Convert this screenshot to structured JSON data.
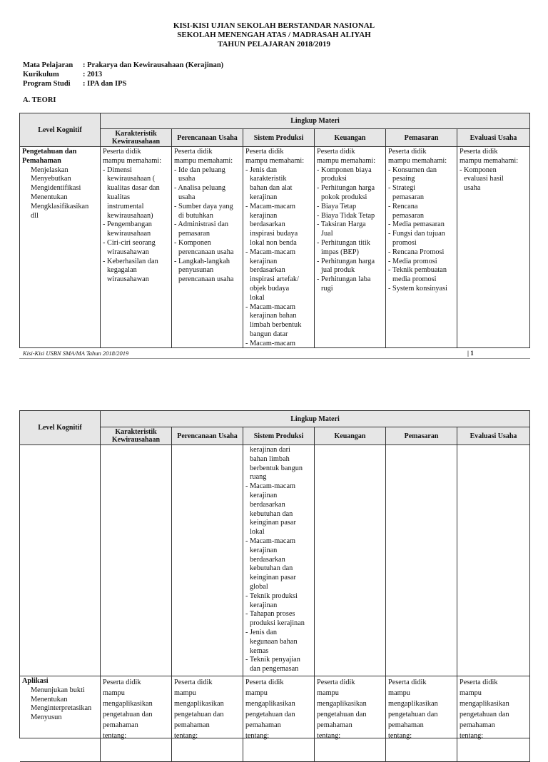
{
  "header": {
    "lines": [
      "KISI-KISI UJIAN SEKOLAH BERSTANDAR NASIONAL",
      "SEKOLAH MENENGAH ATAS / MADRASAH ALIYAH",
      "TAHUN PELAJARAN 2018/2019"
    ]
  },
  "meta": [
    {
      "label": "Mata Pelajaran",
      "value": ": Prakarya dan Kewirausahaan (Kerajinan)"
    },
    {
      "label": "Kurikulum",
      "value": ": 2013"
    },
    {
      "label": "Program Studi",
      "value": ": IPA dan IPS"
    }
  ],
  "section": "A. TEORI",
  "table": {
    "level_header": "Level Kognitif",
    "group_header": "Lingkup Materi",
    "columns": [
      "Karakteristik Kewirausahaan",
      "Perencanaan Usaha",
      "Sistem Produksi",
      "Keuangan",
      "Pemasaran",
      "Evaluasi Usaha"
    ]
  },
  "page1": {
    "level": {
      "title": [
        "Pengetahuan dan",
        "Pemahaman"
      ],
      "items": [
        "Menjelaskan",
        "Menyebutkan",
        "Mengidentifikasi",
        "Menentukan",
        "Mengklasifikasikan",
        "dll"
      ]
    },
    "cells": [
      {
        "intro": [
          "Peserta didik",
          "mampu memahami:"
        ],
        "items": [
          [
            "Dimensi",
            "kewirausahaan (",
            "kualitas dasar dan",
            "kualitas",
            "instrumental",
            "kewirausahaan)"
          ],
          [
            "Pengembangan",
            "kewirausahaan"
          ],
          [
            "Ciri-ciri seorang",
            "wirausahawan"
          ],
          [
            "Keberhasilan dan",
            "kegagalan",
            "wirausahawan"
          ]
        ]
      },
      {
        "intro": [
          "Peserta didik",
          "mampu  memahami:"
        ],
        "items": [
          [
            "Ide dan peluang",
            "usaha"
          ],
          [
            "Analisa peluang",
            "usaha"
          ],
          [
            "Sumber daya yang",
            "di butuhkan"
          ],
          [
            "Administrasi dan",
            "pemasaran"
          ],
          [
            "Komponen",
            "perencanaan usaha"
          ],
          [
            "Langkah-langkah",
            "penyusunan",
            "perencanaan usaha"
          ]
        ]
      },
      {
        "intro": [
          "Peserta didik",
          "mampu memahami:"
        ],
        "items": [
          [
            "Jenis dan",
            "karakteristik",
            "bahan dan alat",
            "kerajinan"
          ],
          [
            "Macam-macam",
            "kerajinan",
            "berdasarkan",
            "inspirasi budaya",
            "lokal non benda"
          ],
          [
            "Macam-macam",
            "kerajinan",
            "berdasarkan",
            "inspirasi artefak/",
            "objek budaya",
            "lokal"
          ],
          [
            "Macam-macam",
            "kerajinan bahan",
            "limbah berbentuk",
            "bangun datar"
          ],
          [
            "Macam-macam"
          ]
        ]
      },
      {
        "intro": [
          "Peserta didik",
          "mampu memahami:"
        ],
        "items": [
          [
            "Komponen biaya",
            "produksi"
          ],
          [
            "Perhitungan harga",
            "pokok produksi"
          ],
          [
            "Biaya Tetap"
          ],
          [
            "Biaya Tidak Tetap"
          ],
          [
            "Taksiran Harga",
            "Jual"
          ],
          [
            "Perhitungan titik",
            "impas (BEP)"
          ],
          [
            "Perhitungan harga",
            "jual produk"
          ],
          [
            "Perhitungan laba",
            "rugi"
          ]
        ]
      },
      {
        "intro": [
          "Peserta didik",
          "mampu memahami:"
        ],
        "items": [
          [
            "Konsumen dan",
            "pesaing"
          ],
          [
            "Strategi",
            "pemasaran"
          ],
          [
            "Rencana",
            "pemasaran"
          ],
          [
            "Media pemasaran"
          ],
          [
            "Fungsi dan tujuan",
            "promosi"
          ],
          [
            "Rencana Promosi"
          ],
          [
            "Media promosi"
          ],
          [
            "Teknik pembuatan",
            "media promosi"
          ],
          [
            "System konsinyasi"
          ]
        ]
      },
      {
        "intro": [
          "Peserta didik",
          "mampu memahami:"
        ],
        "items": [
          [
            "Komponen",
            "evaluasi hasil",
            "usaha"
          ]
        ]
      }
    ]
  },
  "footer": {
    "text": "Kisi-Kisi USBN SMA/MA Tahun 2018/2019",
    "page": "| 1"
  },
  "page2": {
    "continued": [
      "kerajinan dari",
      "bahan limbah",
      "berbentuk bangun",
      "ruang"
    ],
    "items": [
      [
        "Macam-macam",
        "kerajinan",
        "berdasarkan",
        "kebutuhan dan",
        "keinginan pasar",
        "lokal"
      ],
      [
        "Macam-macam",
        "kerajinan",
        "berdasarkan",
        "kebutuhan dan",
        "keinginan pasar",
        "global"
      ],
      [
        "Teknik produksi",
        "kerajinan"
      ],
      [
        "Tahapan proses",
        "produksi kerajinan"
      ],
      [
        "Jenis dan",
        "kegunaan bahan",
        "kemas"
      ],
      [
        "Teknik penyajian",
        "dan pengemasan"
      ]
    ],
    "aplikasi": {
      "title": "Aplikasi",
      "items": [
        "Menunjukan bukti",
        "Menentukan",
        "Menginterpretasikan",
        "Menyusun"
      ],
      "cell_lines": [
        "Peserta didik",
        "mampu",
        "mengaplikasikan",
        "pengetahuan dan",
        "pemahaman",
        "tentang:"
      ]
    }
  }
}
